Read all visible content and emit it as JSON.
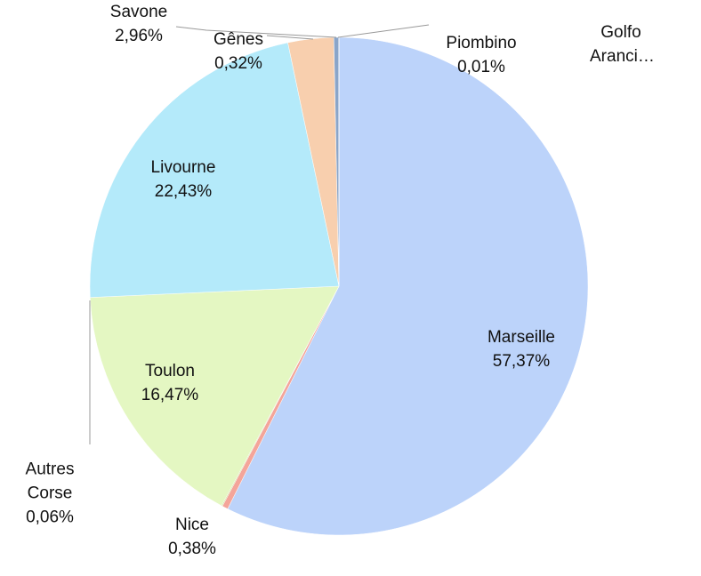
{
  "chart_data": {
    "type": "pie",
    "categories": [
      "Marseille",
      "Nice",
      "Autres Corse",
      "Toulon",
      "Livourne",
      "Savone",
      "Gênes",
      "Piombino",
      "Golfo Aranci…"
    ],
    "values": [
      57.37,
      0.38,
      0.06,
      16.47,
      22.43,
      2.96,
      0.32,
      0.01,
      0
    ],
    "value_labels": [
      "57,37%",
      "0,38%",
      "0,06%",
      "16,47%",
      "22,43%",
      "2,96%",
      "0,32%",
      "0,01%",
      null
    ],
    "colors": [
      "#bcd3fa",
      "#f4a59a",
      "#c9d98a",
      "#e4f7c2",
      "#b4eafa",
      "#f8cfae",
      "#8aa5c9",
      "#6f8fb8",
      "#5a7aa8"
    ]
  }
}
